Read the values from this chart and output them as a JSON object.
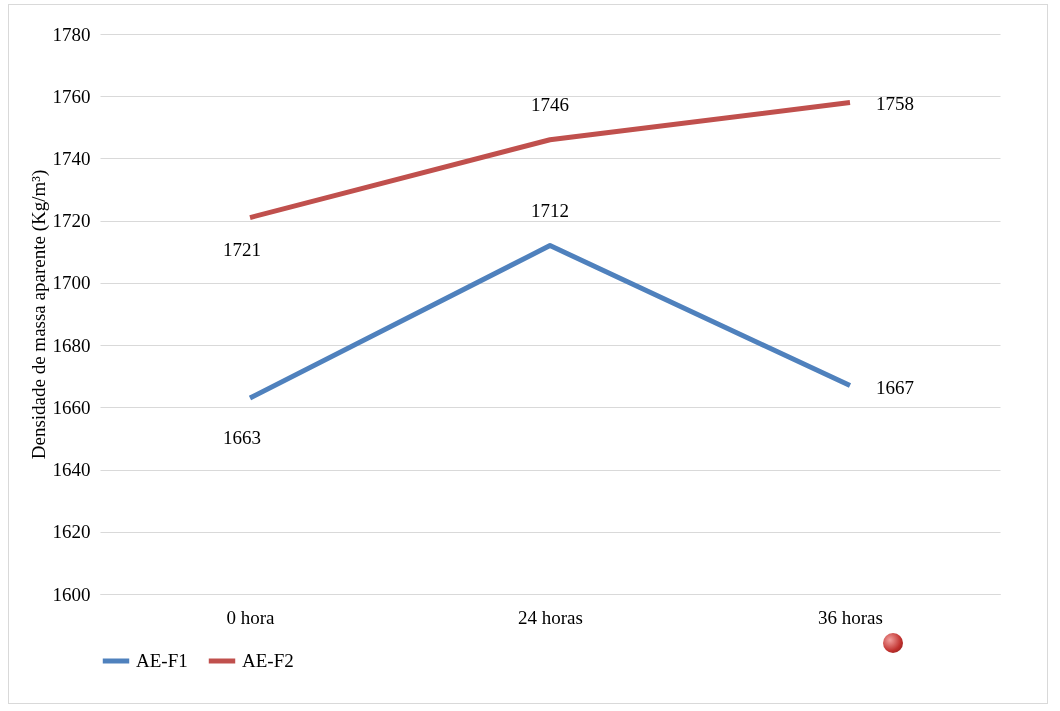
{
  "chart_data": {
    "type": "line",
    "ylabel": "Densidade de massa aparente (Kg/m³)",
    "categories": [
      "0 hora",
      "24 horas",
      "36 horas"
    ],
    "series": [
      {
        "name": "AE-F1",
        "color": "#4f81bd",
        "values": [
          1663,
          1712,
          1667
        ]
      },
      {
        "name": "AE-F2",
        "color": "#c0504d",
        "values": [
          1721,
          1746,
          1758
        ]
      }
    ],
    "ylim": [
      1600,
      1780
    ],
    "yticks": [
      1600,
      1620,
      1640,
      1660,
      1680,
      1700,
      1720,
      1740,
      1760,
      1780
    ],
    "grid": "y",
    "legend": "bottom",
    "data_labels": true,
    "marker": "none"
  }
}
